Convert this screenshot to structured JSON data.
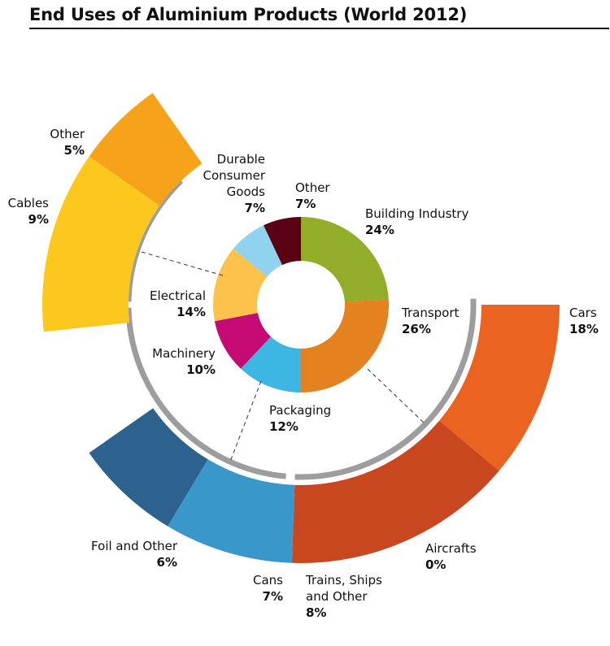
{
  "title": "End Uses of Aluminium Products (World 2012)",
  "chart_data": {
    "type": "pie",
    "title": "End Uses of Aluminium Products (World 2012)",
    "inner_ring": {
      "slices": [
        {
          "label": "Building Industry",
          "value": "24%",
          "color": "#92ad2a"
        },
        {
          "label": "Transport",
          "value": "26%",
          "color": "#e3821f"
        },
        {
          "label": "Packaging",
          "value": "12%",
          "color": "#3eb6e3"
        },
        {
          "label": "Machinery",
          "value": "10%",
          "color": "#c50a73"
        },
        {
          "label": "Electrical",
          "value": "14%",
          "color": "#fdc24c"
        },
        {
          "label": "Durable Consumer Goods",
          "value": "7%",
          "color": "#8fd3ee"
        },
        {
          "label": "Other",
          "value": "7%",
          "color": "#5a0213"
        }
      ]
    },
    "outer_segments": [
      {
        "parent": "Electrical",
        "label": "Cables",
        "value": "9%",
        "color": "#fdc81e"
      },
      {
        "parent": "Electrical",
        "label": "Other",
        "value": "5%",
        "color": "#f6a31a"
      },
      {
        "parent": "Transport",
        "label": "Cars",
        "value": "18%",
        "color": "#ea6321"
      },
      {
        "parent": "Transport",
        "label": "Aircrafts",
        "value": "0%",
        "color": "#f07a3a"
      },
      {
        "parent": "Transport",
        "label": "Trains, Ships and Other",
        "value": "8%",
        "color": "#c8471f"
      },
      {
        "parent": "Packaging",
        "label": "Cans",
        "value": "7%",
        "color": "#3a97c9"
      },
      {
        "parent": "Packaging",
        "label": "Foil and Other",
        "value": "6%",
        "color": "#2d628e"
      }
    ]
  }
}
